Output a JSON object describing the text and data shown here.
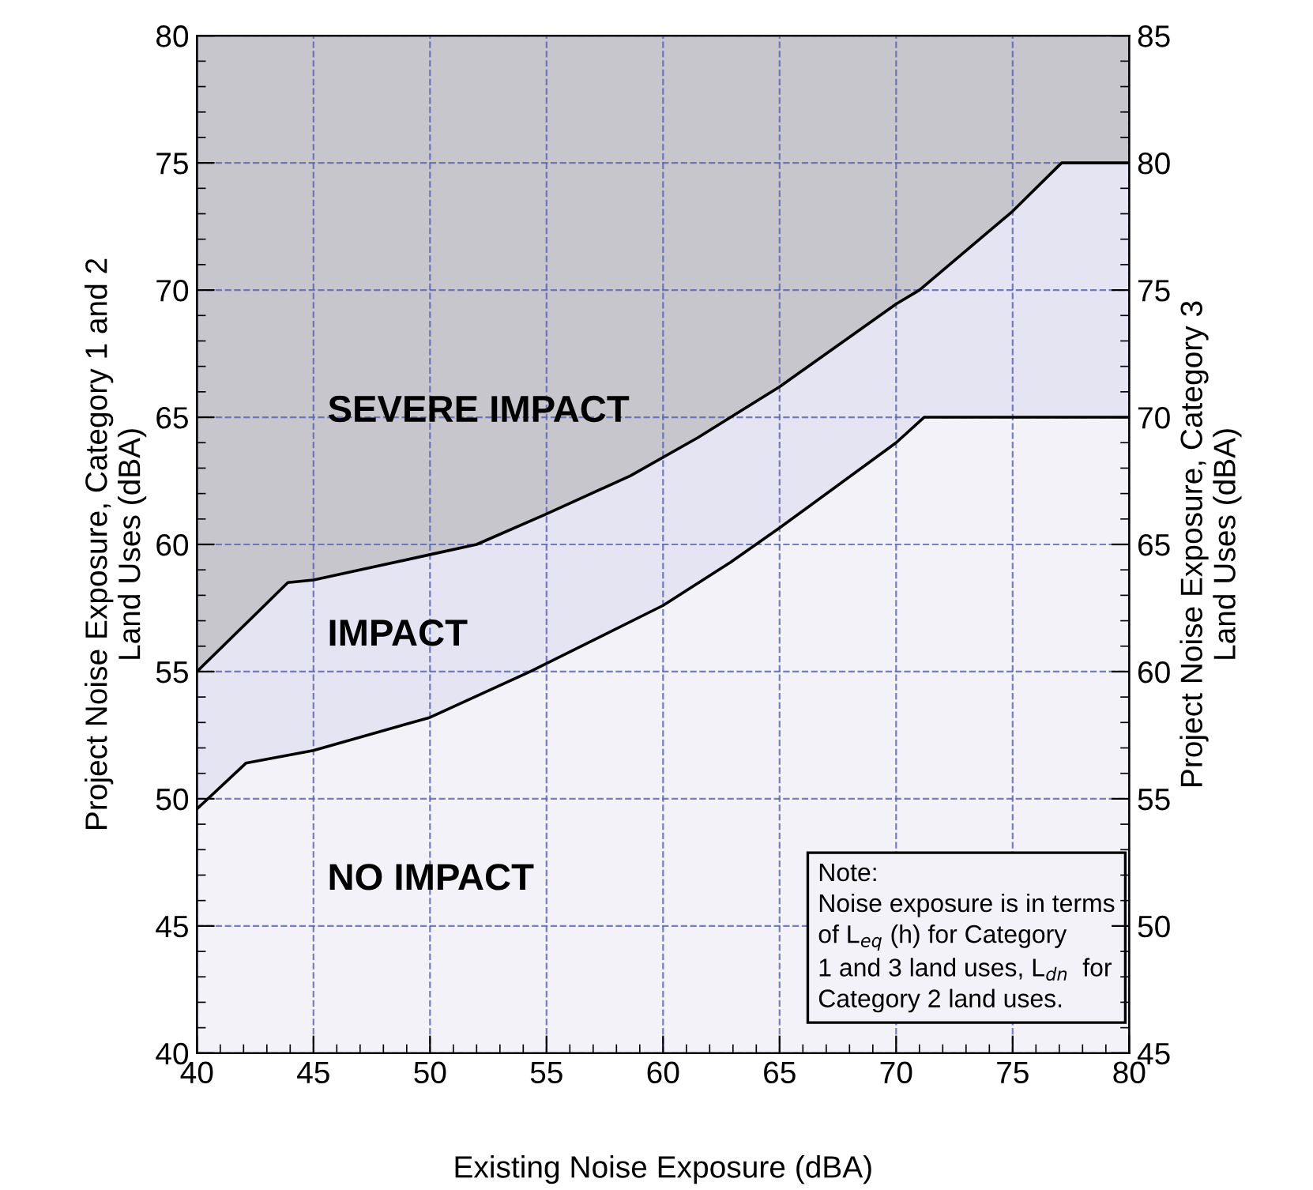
{
  "chart_data": {
    "type": "area",
    "xlabel": "Existing Noise Exposure (dBA)",
    "ylabel": "Project Noise Exposure, Category 1 and 2\nLand Uses (dBA)",
    "y2label": "Project Noise Exposure, Category 3\nLand Uses (dBA)",
    "series": [
      {
        "x": [
          40,
          43.9,
          45,
          50,
          52,
          55,
          58.6,
          61.5,
          62.9,
          65,
          70,
          71,
          75,
          77.1,
          80
        ],
        "values": [
          55,
          58.5,
          58.6,
          59.6,
          60.0,
          61.2,
          62.7,
          64.2,
          65,
          66.2,
          69.45,
          70,
          73.1,
          75,
          75
        ],
        "color": "#e4e4f2"
      },
      {
        "x": [
          40,
          42.1,
          45,
          50,
          54.3,
          60,
          62.9,
          65,
          70,
          71.2,
          80
        ],
        "values": [
          49.6,
          51.4,
          51.9,
          53.2,
          55,
          57.6,
          59.3,
          60.65,
          64,
          65,
          65
        ],
        "color": "#f2f2f8"
      }
    ],
    "annotations": [
      "SEVERE IMPACT",
      "IMPACT",
      "NO IMPACT",
      "Note:\nNoise exposure is in terms\nof L$_{eq}$ (h) for Category\n1 and 3 land uses, L$_{dn}$  for\nCategory 2 land uses."
    ],
    "xlim": [
      40,
      80
    ],
    "xticks": [
      40,
      45,
      50,
      55,
      60,
      65,
      70,
      75,
      80
    ],
    "ylim": [
      40,
      80
    ],
    "yticks": [
      40,
      45,
      50,
      55,
      60,
      65,
      70,
      75,
      80
    ],
    "y2lim": [
      45,
      85
    ],
    "y2ticks": [
      45,
      50,
      55,
      60,
      65,
      70,
      75,
      80,
      85
    ],
    "grid": true,
    "line_style": "solid",
    "legend": false
  }
}
